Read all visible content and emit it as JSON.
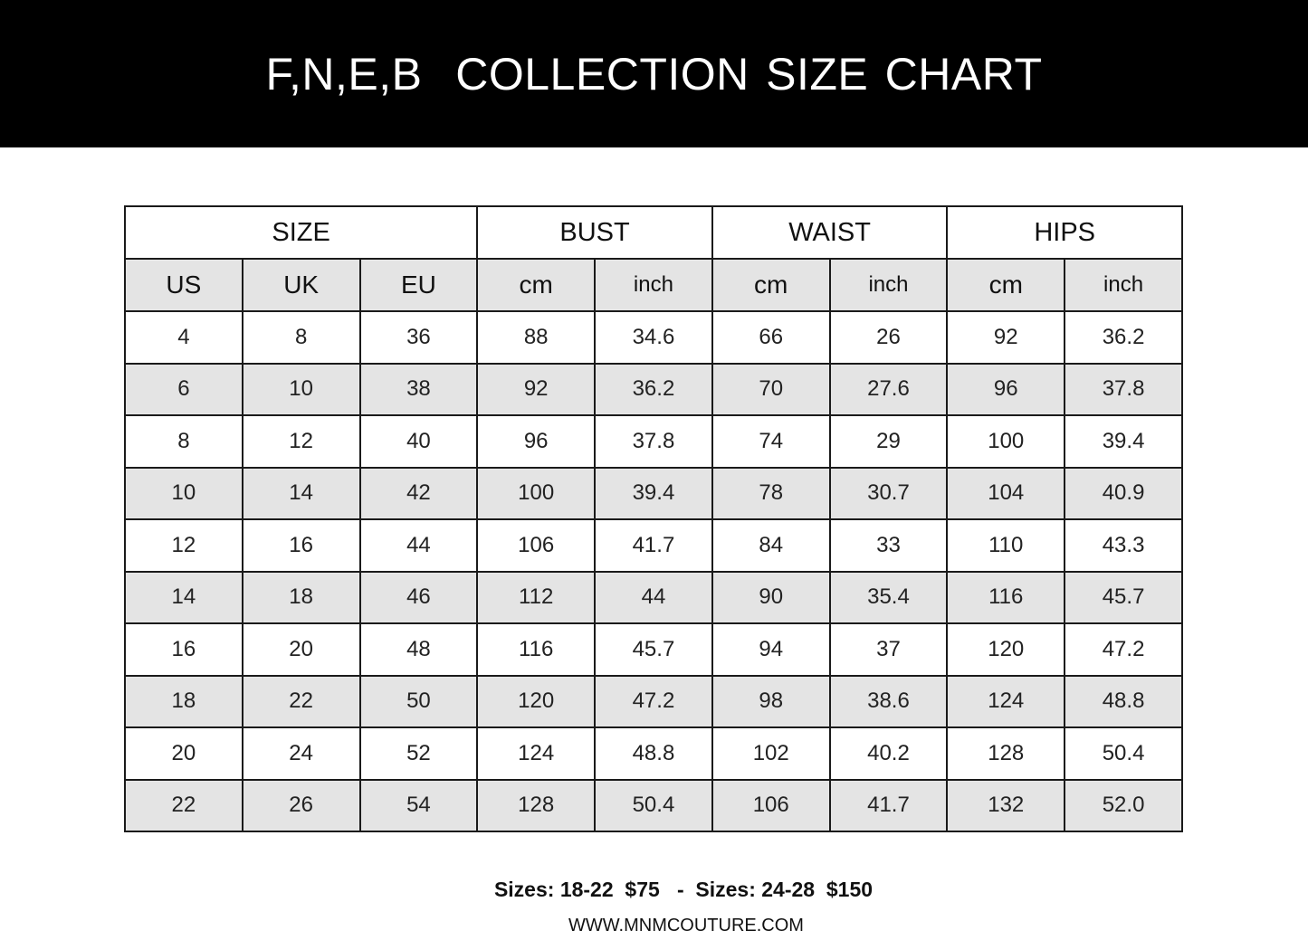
{
  "title": "F,N,E,B  COLLECTION SIZE CHART",
  "table": {
    "groups": [
      "SIZE",
      "BUST",
      "WAIST",
      "HIPS"
    ],
    "subheaders": [
      "US",
      "UK",
      "EU",
      "cm",
      "inch",
      "cm",
      "inch",
      "cm",
      "inch"
    ],
    "rows": [
      [
        "4",
        "8",
        "36",
        "88",
        "34.6",
        "66",
        "26",
        "92",
        "36.2"
      ],
      [
        "6",
        "10",
        "38",
        "92",
        "36.2",
        "70",
        "27.6",
        "96",
        "37.8"
      ],
      [
        "8",
        "12",
        "40",
        "96",
        "37.8",
        "74",
        "29",
        "100",
        "39.4"
      ],
      [
        "10",
        "14",
        "42",
        "100",
        "39.4",
        "78",
        "30.7",
        "104",
        "40.9"
      ],
      [
        "12",
        "16",
        "44",
        "106",
        "41.7",
        "84",
        "33",
        "110",
        "43.3"
      ],
      [
        "14",
        "18",
        "46",
        "112",
        "44",
        "90",
        "35.4",
        "116",
        "45.7"
      ],
      [
        "16",
        "20",
        "48",
        "116",
        "45.7",
        "94",
        "37",
        "120",
        "47.2"
      ],
      [
        "18",
        "22",
        "50",
        "120",
        "47.2",
        "98",
        "38.6",
        "124",
        "48.8"
      ],
      [
        "20",
        "24",
        "52",
        "124",
        "48.8",
        "102",
        "40.2",
        "128",
        "50.4"
      ],
      [
        "22",
        "26",
        "54",
        "128",
        "50.4",
        "106",
        "41.7",
        "132",
        "52.0"
      ]
    ]
  },
  "footer": {
    "prices": "Sizes: 18-22  $75   -  Sizes: 24-28  $150",
    "website": "WWW.MNMCOUTURE.COM"
  },
  "colors": {
    "banner": "#000000",
    "row_shade": "#e4e4e4"
  }
}
